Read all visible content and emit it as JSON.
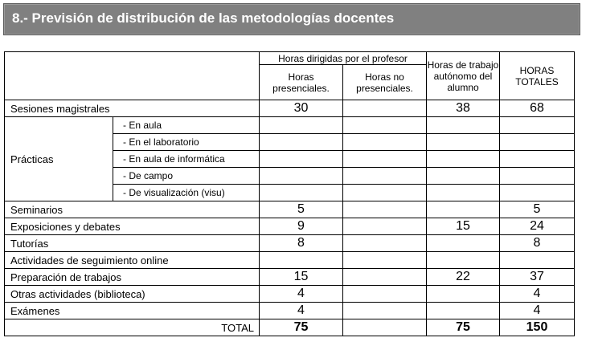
{
  "section_title": "8.- Previsión de distribución de las metodologías docentes",
  "headers": {
    "group": "Horas dirigidas por el profesor",
    "presenciales": "Horas presenciales.",
    "no_presenciales": "Horas no presenciales.",
    "autonomo": "Horas de trabajo autónomo del alumno",
    "totales": "HORAS TOTALES"
  },
  "rows": {
    "magistrales": {
      "label": "Sesiones magistrales",
      "presenciales": "30",
      "no_presenciales": "",
      "autonomo": "38",
      "totales": "68"
    },
    "practicas": {
      "label": "Prácticas",
      "subs": [
        "-  En aula",
        "-  En el laboratorio",
        "-  En aula  de informática",
        "-  De campo",
        "-  De visualización (visu)"
      ]
    },
    "seminarios": {
      "label": "Seminarios",
      "presenciales": "5",
      "no_presenciales": "",
      "autonomo": "",
      "totales": "5"
    },
    "exposiciones": {
      "label": "Exposiciones  y debates",
      "presenciales": "9",
      "no_presenciales": "",
      "autonomo": "15",
      "totales": "24"
    },
    "tutorias": {
      "label": "Tutorías",
      "presenciales": "8",
      "no_presenciales": "",
      "autonomo": "",
      "totales": "8"
    },
    "online": {
      "label": "Actividades  de seguimiento  online",
      "presenciales": "",
      "no_presenciales": "",
      "autonomo": "",
      "totales": ""
    },
    "trabajos": {
      "label": "Preparación  de trabajos",
      "presenciales": "15",
      "no_presenciales": "",
      "autonomo": "22",
      "totales": "37"
    },
    "otras": {
      "label": "Otras actividades (biblioteca)",
      "presenciales": "4",
      "no_presenciales": "",
      "autonomo": "",
      "totales": "4"
    },
    "examenes": {
      "label": "Exámenes",
      "presenciales": "4",
      "no_presenciales": "",
      "autonomo": "",
      "totales": "4"
    },
    "total": {
      "label": "TOTAL",
      "presenciales": "75",
      "no_presenciales": "",
      "autonomo": "75",
      "totales": "150"
    }
  }
}
